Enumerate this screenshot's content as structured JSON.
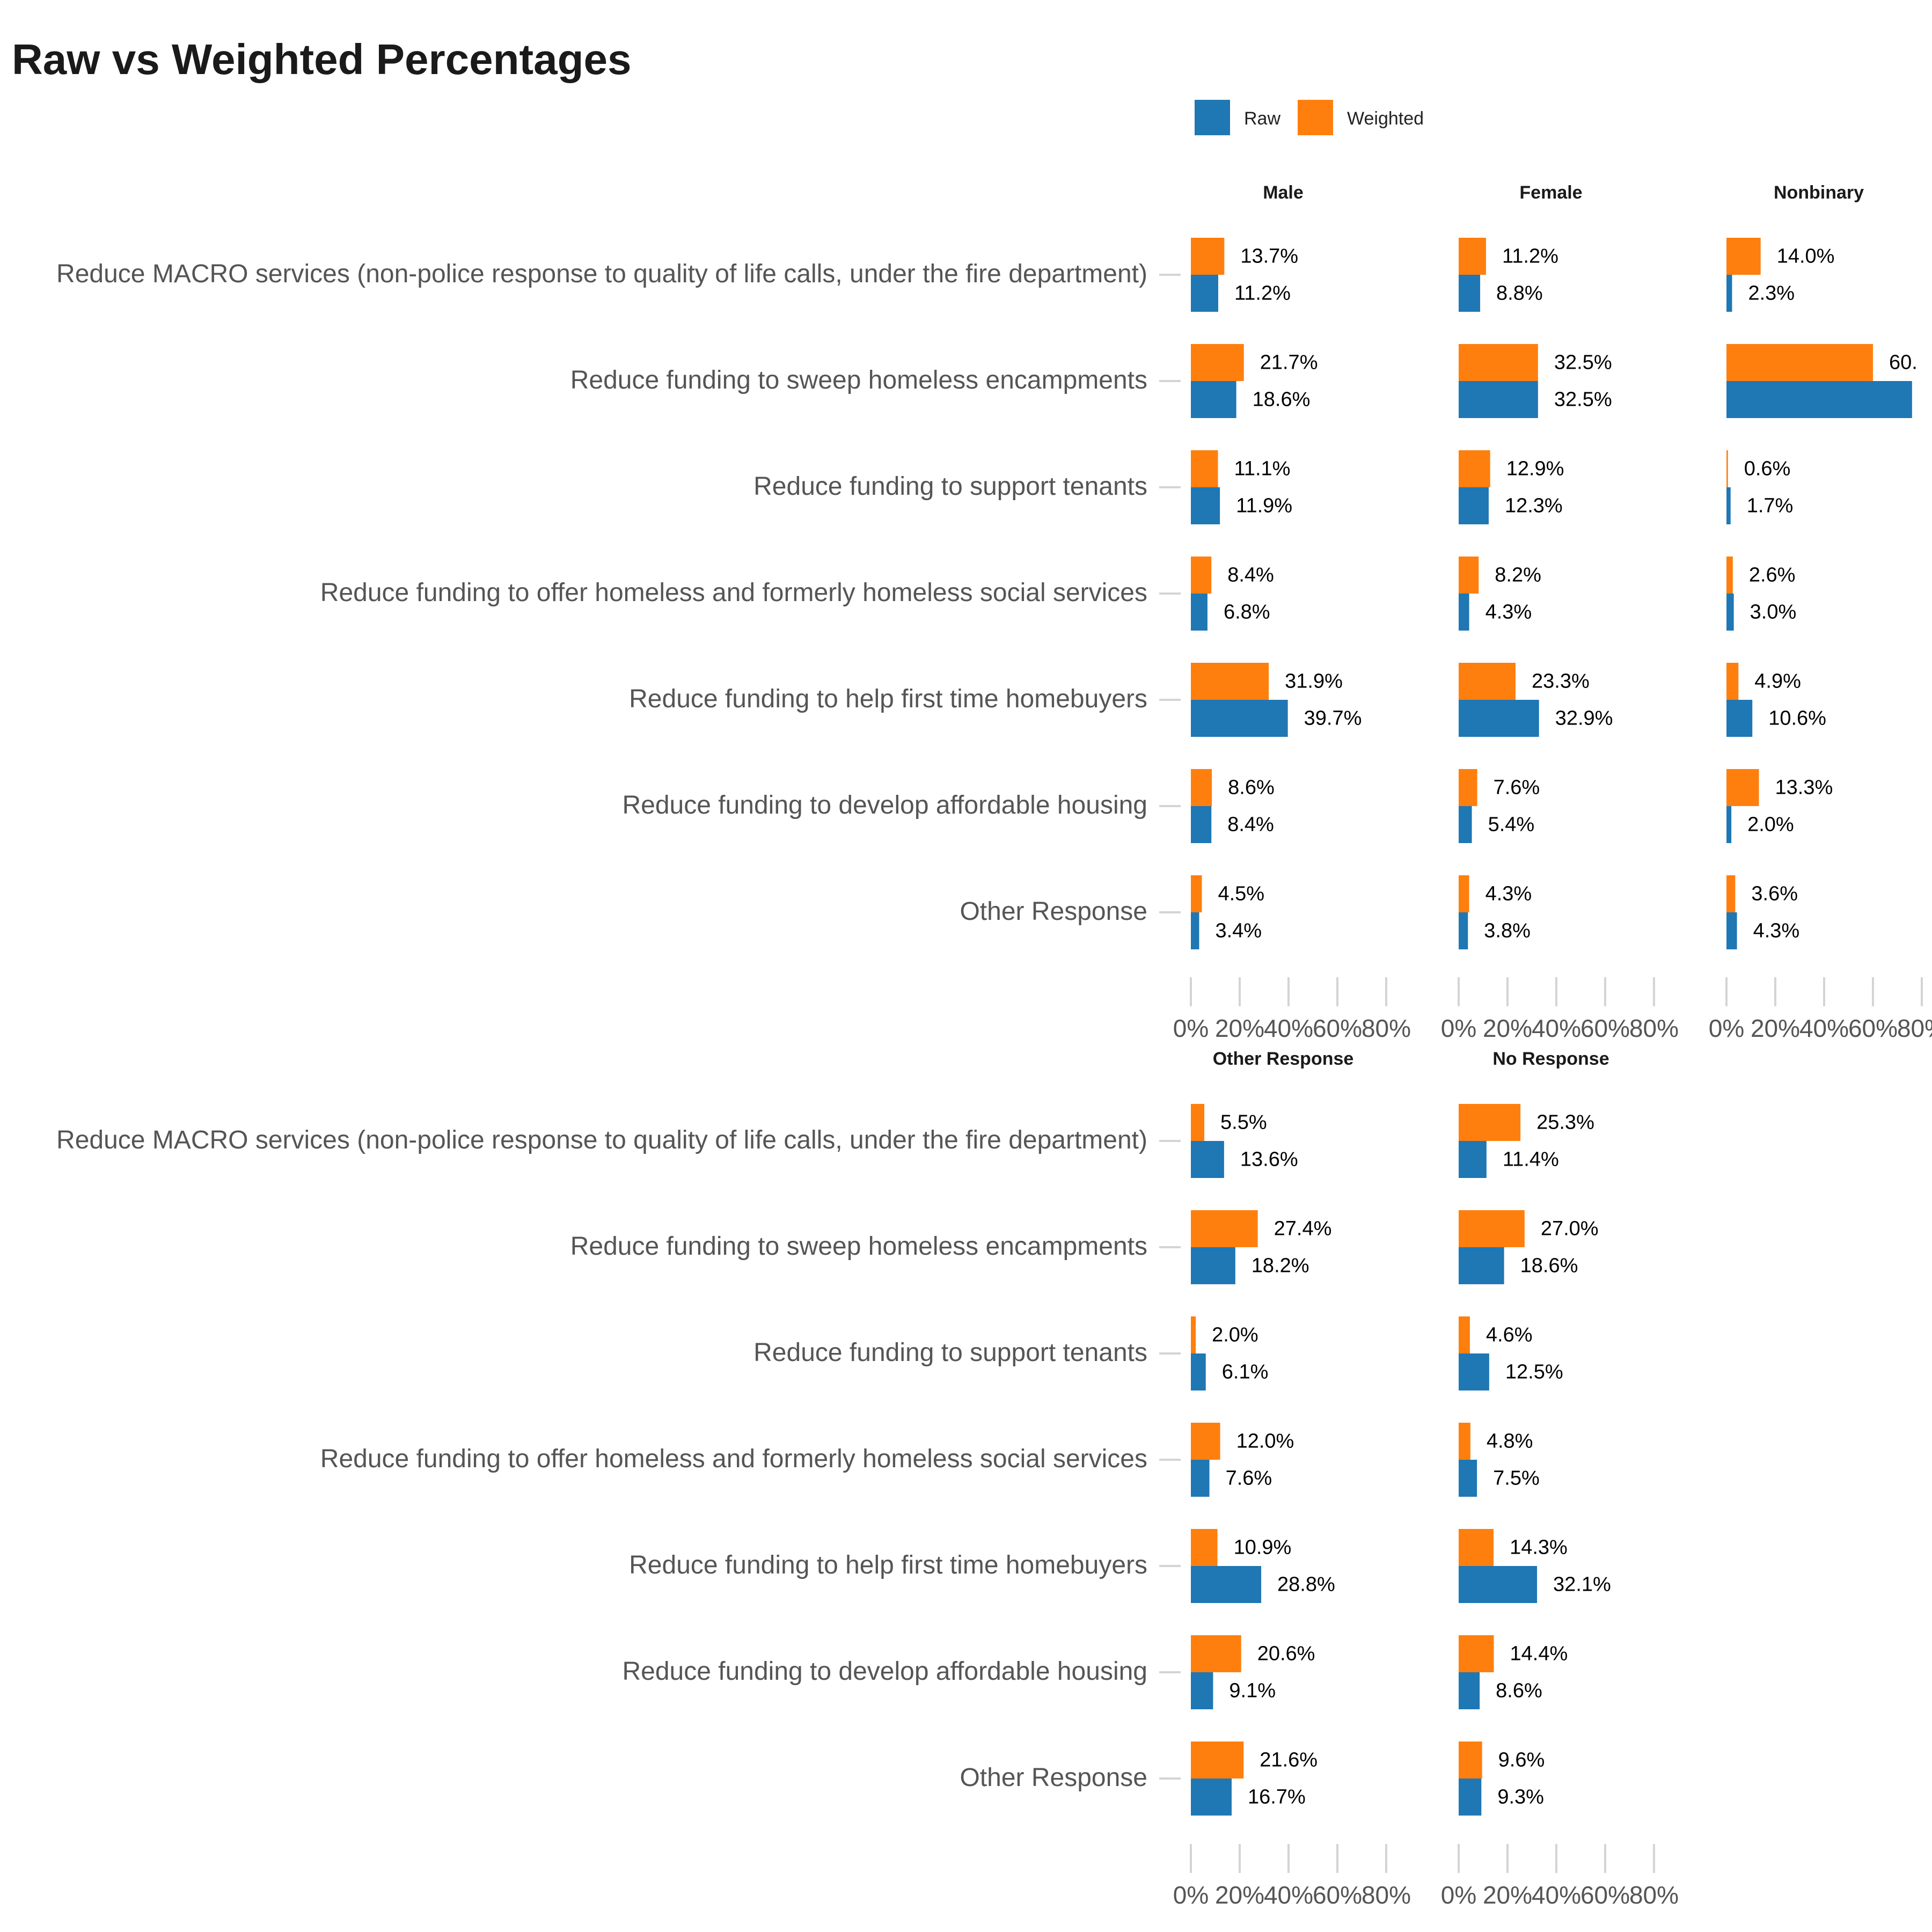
{
  "chart_data": {
    "type": "bar",
    "orientation": "horizontal",
    "title": "Raw vs Weighted Percentages",
    "legend": {
      "position": "top",
      "entries": [
        {
          "name": "Raw",
          "color": "#1f77b4"
        },
        {
          "name": "Weighted",
          "color": "#ff7f0e"
        }
      ]
    },
    "grid": false,
    "xlim": [
      0,
      0.8
    ],
    "x_ticks": [
      "0%",
      "20%",
      "40%",
      "60%",
      "80%"
    ],
    "categories": [
      "Reduce MACRO services (non-police response to quality of life calls, under the fire department)",
      "Reduce funding to sweep homeless encampments",
      "Reduce funding to support tenants",
      "Reduce funding to offer homeless and formerly homeless social services",
      "Reduce funding to help first time homebuyers",
      "Reduce funding to develop affordable housing",
      "Other Response"
    ],
    "panels": [
      {
        "name": "Male",
        "weighted": [
          13.7,
          21.7,
          11.1,
          8.4,
          31.9,
          8.6,
          4.5
        ],
        "raw": [
          11.2,
          18.6,
          11.9,
          6.8,
          39.7,
          8.4,
          3.4
        ],
        "weighted_labels": [
          "13.7%",
          "21.7%",
          "11.1%",
          "8.4%",
          "31.9%",
          "8.6%",
          "4.5%"
        ],
        "raw_labels": [
          "11.2%",
          "18.6%",
          "11.9%",
          "6.8%",
          "39.7%",
          "8.4%",
          "3.4%"
        ]
      },
      {
        "name": "Female",
        "weighted": [
          11.2,
          32.5,
          12.9,
          8.2,
          23.3,
          7.6,
          4.3
        ],
        "raw": [
          8.8,
          32.5,
          12.3,
          4.3,
          32.9,
          5.4,
          3.8
        ],
        "weighted_labels": [
          "11.2%",
          "32.5%",
          "12.9%",
          "8.2%",
          "23.3%",
          "7.6%",
          "4.3%"
        ],
        "raw_labels": [
          "8.8%",
          "32.5%",
          "12.3%",
          "4.3%",
          "32.9%",
          "5.4%",
          "3.8%"
        ]
      },
      {
        "name": "Nonbinary",
        "weighted": [
          14.0,
          60.0,
          0.6,
          2.6,
          4.9,
          13.3,
          3.6
        ],
        "raw": [
          2.3,
          76.0,
          1.7,
          3.0,
          10.6,
          2.0,
          4.3
        ],
        "weighted_labels": [
          "14.0%",
          "60.",
          "0.6%",
          "2.6%",
          "4.9%",
          "13.3%",
          "3.6%"
        ],
        "raw_labels": [
          "2.3%",
          "",
          "1.7%",
          "3.0%",
          "10.6%",
          "2.0%",
          "4.3%"
        ]
      },
      {
        "name": "Other Response",
        "weighted": [
          5.5,
          27.4,
          2.0,
          12.0,
          10.9,
          20.6,
          21.6
        ],
        "raw": [
          13.6,
          18.2,
          6.1,
          7.6,
          28.8,
          9.1,
          16.7
        ],
        "weighted_labels": [
          "5.5%",
          "27.4%",
          "2.0%",
          "12.0%",
          "10.9%",
          "20.6%",
          "21.6%"
        ],
        "raw_labels": [
          "13.6%",
          "18.2%",
          "6.1%",
          "7.6%",
          "28.8%",
          "9.1%",
          "16.7%"
        ]
      },
      {
        "name": "No Response",
        "weighted": [
          25.3,
          27.0,
          4.6,
          4.8,
          14.3,
          14.4,
          9.6
        ],
        "raw": [
          11.4,
          18.6,
          12.5,
          7.5,
          32.1,
          8.6,
          9.3
        ],
        "weighted_labels": [
          "25.3%",
          "27.0%",
          "4.6%",
          "4.8%",
          "14.3%",
          "14.4%",
          "9.6%"
        ],
        "raw_labels": [
          "11.4%",
          "18.6%",
          "12.5%",
          "7.5%",
          "32.1%",
          "8.6%",
          "9.3%"
        ]
      }
    ]
  }
}
